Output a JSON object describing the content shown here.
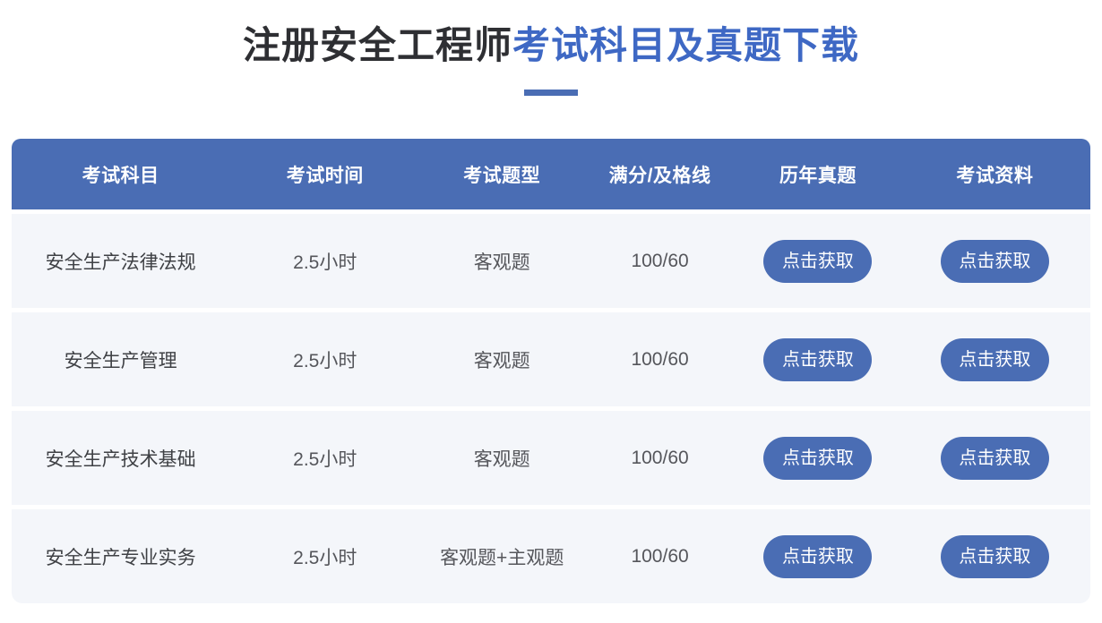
{
  "page": {
    "title_dark": "注册安全工程师",
    "title_accent": "考试科目及真题下载"
  },
  "table": {
    "headers": [
      "考试科目",
      "考试时间",
      "考试题型",
      "满分/及格线",
      "历年真题",
      "考试资料"
    ],
    "button_label": "点击获取",
    "rows": [
      {
        "subject": "安全生产法律法规",
        "duration": "2.5小时",
        "question_type": "客观题",
        "score": "100/60"
      },
      {
        "subject": "安全生产管理",
        "duration": "2.5小时",
        "question_type": "客观题",
        "score": "100/60"
      },
      {
        "subject": "安全生产技术基础",
        "duration": "2.5小时",
        "question_type": "客观题",
        "score": "100/60"
      },
      {
        "subject": "安全生产专业实务",
        "duration": "2.5小时",
        "question_type": "客观题+主观题",
        "score": "100/60"
      }
    ]
  },
  "colors": {
    "accent_title": "#3e68c4",
    "header_bg": "#4a6db4",
    "button_bg": "#4a6db4",
    "row_bg": "#f4f6fa",
    "underline": "#4a6db4"
  }
}
